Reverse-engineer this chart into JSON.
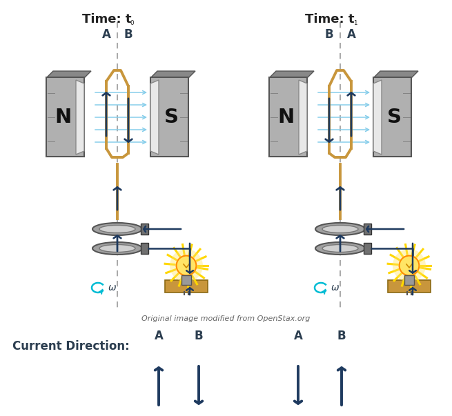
{
  "bg_color": "#ffffff",
  "arrow_color": "#1e3a5f",
  "coil_color": "#c8963c",
  "field_line_color": "#87ceeb",
  "omega_color": "#00bcd4",
  "light_yellow": "#ffd700",
  "light_orange": "#ff8c00",
  "mag_face_light": "#e8e8e8",
  "mag_body": "#b0b0b0",
  "mag_dark": "#888888",
  "ring_color": "#a0a0a0",
  "ring_light": "#d0d0d0",
  "brush_color": "#707070",
  "label_color": "#2c3e50",
  "credit_text": "Original image modified from OpenStax.org",
  "current_direction_label": "Current Direction:",
  "t0_title": "Time: t",
  "t0_sub": "0",
  "t1_title": "Time: t",
  "t1_sub": "1",
  "fig_width": 6.55,
  "fig_height": 6.03,
  "dpi": 100
}
